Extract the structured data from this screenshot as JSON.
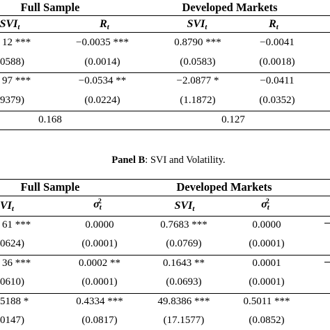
{
  "panelA": {
    "header_full": "Full Sample",
    "header_dev": "Developed Markets",
    "cols": [
      {
        "sym": "SVI",
        "sub": "t",
        "sup": ""
      },
      {
        "sym": "R",
        "sub": "t",
        "sup": ""
      },
      {
        "sym": "SVI",
        "sub": "t",
        "sup": ""
      },
      {
        "sym": "R",
        "sub": "t",
        "sup": ""
      }
    ],
    "row1_coef": [
      "12 ***",
      "−0.0035 ***",
      "0.8790 ***",
      "−0.0041"
    ],
    "row1_se": [
      "0588)",
      "(0.0014)",
      "(0.0583)",
      "(0.0018)"
    ],
    "row2_coef": [
      "97 ***",
      "−0.0534 **",
      "−2.0877 *",
      "−0.0411"
    ],
    "row2_se": [
      "9379)",
      "(0.0224)",
      "(1.1872)",
      "(0.0352)"
    ],
    "r2": [
      "0.168",
      "0.127"
    ]
  },
  "panelB": {
    "title_bold": "Panel B",
    "title_rest": ": SVI and Volatility.",
    "header_full": "Full Sample",
    "header_dev": "Developed Markets",
    "cols": [
      {
        "sym": "VI",
        "sub": "t",
        "sup": ""
      },
      {
        "sym": "σ",
        "sub": "t",
        "sup": "2"
      },
      {
        "sym": "SVI",
        "sub": "t",
        "sup": ""
      },
      {
        "sym": "σ",
        "sub": "t",
        "sup": "2"
      }
    ],
    "row1_coef": [
      "61 ***",
      "0.0000",
      "0.7683 ***",
      "0.0000"
    ],
    "row1_se": [
      "0624)",
      "(0.0001)",
      "(0.0769)",
      "(0.0001)"
    ],
    "row2_coef": [
      "36 ***",
      "0.0002 **",
      "0.1643 **",
      "0.0001"
    ],
    "row2_se": [
      "0610)",
      "(0.0001)",
      "(0.0693)",
      "(0.0001)"
    ],
    "row3_coef": [
      "5188 *",
      "0.4334 ***",
      "49.8386 ***",
      "0.5011 ***"
    ],
    "row3_se": [
      "0147)",
      "(0.0817)",
      "(17.1577)",
      "(0.0852)"
    ]
  }
}
